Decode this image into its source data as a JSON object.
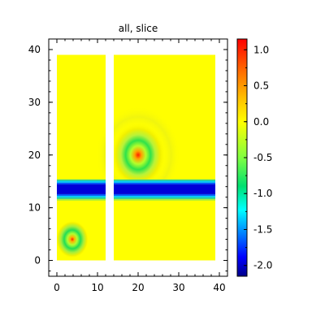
{
  "chart_data": {
    "type": "heatmap",
    "title": "all, slice",
    "xlabel": "",
    "ylabel": "",
    "xlim": [
      -2,
      42
    ],
    "ylim": [
      -3,
      42
    ],
    "x_ticks": [
      "0",
      "10",
      "20",
      "30",
      "40"
    ],
    "y_ticks": [
      "0",
      "10",
      "20",
      "30",
      "40"
    ],
    "colormap": "jet",
    "colorbar": {
      "min": -2.15,
      "max": 1.15,
      "ticks": [
        "1.0",
        "0.5",
        "0.0",
        "-0.5",
        "-1.0",
        "-1.5",
        "-2.0"
      ]
    },
    "background_value": 0.0,
    "regions": [
      {
        "x": [
          0,
          12
        ],
        "y": [
          0,
          39
        ]
      },
      {
        "x": [
          14,
          39
        ],
        "y": [
          0,
          39
        ]
      }
    ],
    "band": {
      "y_center": 13.5,
      "value": -2.1,
      "halo_value": -0.6
    },
    "peaks": [
      {
        "x": 20,
        "y": 20,
        "value": 1.05
      },
      {
        "x": 3,
        "y": 4,
        "value": 1.0
      }
    ]
  }
}
